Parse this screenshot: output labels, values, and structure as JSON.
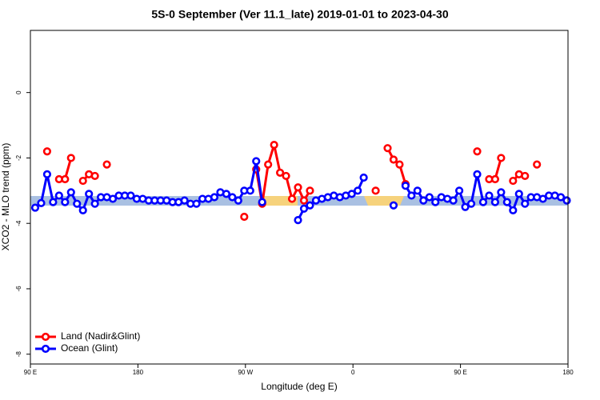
{
  "chart_data": {
    "type": "line",
    "title": "5S-0 September (Ver 11.1_late)   2019-01-01 to 2023-04-30",
    "xlabel": "Longitude (deg E)",
    "ylabel": "XCO2 - MLO trend (ppm)",
    "x": [
      94,
      99,
      104,
      109,
      114,
      119,
      124,
      129,
      134,
      139,
      144,
      149,
      154,
      159,
      164,
      169,
      174,
      179,
      184,
      189,
      194,
      199,
      204,
      209,
      214,
      219,
      224,
      229,
      234,
      239,
      244,
      249,
      254,
      259,
      264,
      269,
      274,
      279,
      284,
      289,
      294,
      299,
      304,
      309,
      314,
      319,
      324,
      329,
      334,
      339,
      344,
      349,
      354,
      359,
      364,
      369,
      374,
      379,
      384,
      389,
      394,
      399,
      404,
      409,
      414,
      419,
      424,
      429,
      434,
      439,
      444,
      449,
      454,
      459,
      464,
      469,
      474,
      479,
      484,
      489,
      494,
      499,
      504,
      509,
      514,
      519,
      524,
      529,
      534,
      539
    ],
    "series": [
      {
        "name": "Land (Nadir&Glint)",
        "color": "#ff0000",
        "values": [
          null,
          null,
          -1.8,
          null,
          -2.65,
          -2.65,
          -2.0,
          null,
          -2.7,
          -2.5,
          -2.55,
          null,
          -2.2,
          null,
          null,
          null,
          null,
          null,
          null,
          null,
          null,
          null,
          null,
          null,
          null,
          null,
          null,
          null,
          null,
          null,
          null,
          null,
          null,
          null,
          null,
          -3.8,
          null,
          -2.35,
          -3.4,
          -2.2,
          -1.6,
          -2.45,
          -2.55,
          -3.25,
          -2.9,
          -3.3,
          -3.0,
          null,
          null,
          null,
          null,
          null,
          null,
          null,
          null,
          null,
          null,
          -3.0,
          null,
          -1.7,
          -2.05,
          -2.2,
          -2.8,
          null,
          null,
          null,
          null,
          null,
          null,
          null,
          null,
          null,
          null,
          null,
          -1.8,
          null,
          -2.65,
          -2.65,
          -2.0,
          null,
          -2.7,
          -2.5,
          -2.55,
          null,
          -2.2,
          null,
          null,
          null,
          null,
          null
        ]
      },
      {
        "name": "Ocean (Glint)",
        "color": "#0000ff",
        "values": [
          -3.52,
          -3.38,
          -2.5,
          -3.35,
          -3.15,
          -3.35,
          -3.05,
          -3.4,
          -3.6,
          -3.1,
          -3.4,
          -3.2,
          -3.2,
          -3.25,
          -3.15,
          -3.15,
          -3.15,
          -3.25,
          -3.25,
          -3.3,
          -3.3,
          -3.3,
          -3.3,
          -3.35,
          -3.35,
          -3.3,
          -3.4,
          -3.4,
          -3.25,
          -3.25,
          -3.2,
          -3.05,
          -3.1,
          -3.2,
          -3.3,
          -3.0,
          -3.0,
          -2.1,
          -3.35,
          null,
          null,
          null,
          null,
          null,
          -3.9,
          -3.55,
          -3.45,
          -3.3,
          -3.25,
          -3.2,
          -3.15,
          -3.2,
          -3.15,
          -3.1,
          -3.0,
          -2.6,
          null,
          null,
          null,
          null,
          -3.45,
          null,
          -2.85,
          -3.15,
          -3.0,
          -3.3,
          -3.2,
          -3.35,
          -3.2,
          -3.25,
          -3.3,
          -3.0,
          -3.5,
          -3.4,
          -2.5,
          -3.35,
          -3.15,
          -3.35,
          -3.05,
          -3.35,
          -3.6,
          -3.1,
          -3.4,
          -3.2,
          -3.2,
          -3.25,
          -3.15,
          -3.15,
          -3.2,
          -3.3
        ]
      }
    ],
    "xlim": [
      90,
      540
    ],
    "xticks": [
      {
        "value": 90,
        "label": "90 E"
      },
      180,
      {
        "value": 270,
        "label": "90 W"
      },
      {
        "value": 360,
        "label": "0"
      },
      {
        "value": 450,
        "label": "90 E"
      },
      {
        "value": 540,
        "label": "180"
      }
    ],
    "ylim": [
      -8.3,
      1.9
    ],
    "yticks": [
      0,
      -2,
      -4,
      -6,
      -8
    ],
    "legend": "lower left"
  }
}
